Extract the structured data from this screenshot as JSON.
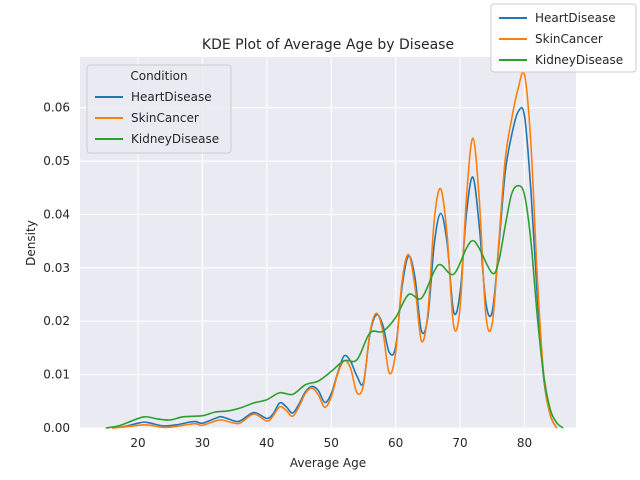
{
  "chart_data": {
    "type": "line",
    "title": "KDE Plot of Average Age by Disease",
    "xlabel": "Average Age",
    "ylabel": "Density",
    "xlim": [
      11,
      88
    ],
    "ylim": [
      0,
      0.0695
    ],
    "xticks": [
      20,
      30,
      40,
      50,
      60,
      70,
      80
    ],
    "yticks": [
      0.0,
      0.01,
      0.02,
      0.03,
      0.04,
      0.05,
      0.06
    ],
    "ytick_labels": [
      "0.00",
      "0.01",
      "0.02",
      "0.03",
      "0.04",
      "0.05",
      "0.06"
    ],
    "grid": true,
    "background": "#eaeaf2",
    "legend_inner": {
      "title": "Condition",
      "placement": "upper-left",
      "entries": [
        "HeartDisease",
        "SkinCancer",
        "KidneyDisease"
      ]
    },
    "legend_outer": {
      "placement": "top-right",
      "entries": [
        "HeartDisease",
        "SkinCancer",
        "KidneyDisease"
      ]
    },
    "series": [
      {
        "name": "HeartDisease",
        "color": "#1f77b4",
        "points": [
          [
            16,
            0
          ],
          [
            18,
            0.0003
          ],
          [
            20,
            0.0009
          ],
          [
            21,
            0.0011
          ],
          [
            22,
            0.0009
          ],
          [
            24,
            0.0004
          ],
          [
            26,
            0.0006
          ],
          [
            28,
            0.0011
          ],
          [
            29,
            0.0012
          ],
          [
            30,
            0.0009
          ],
          [
            32,
            0.0018
          ],
          [
            33,
            0.0021
          ],
          [
            35,
            0.0013
          ],
          [
            36,
            0.0014
          ],
          [
            38,
            0.0029
          ],
          [
            40,
            0.0018
          ],
          [
            41,
            0.0027
          ],
          [
            42,
            0.0047
          ],
          [
            43,
            0.004
          ],
          [
            44,
            0.0028
          ],
          [
            45,
            0.0045
          ],
          [
            46,
            0.0068
          ],
          [
            47,
            0.0078
          ],
          [
            48,
            0.007
          ],
          [
            49,
            0.0048
          ],
          [
            50,
            0.0064
          ],
          [
            51,
            0.0103
          ],
          [
            52,
            0.0135
          ],
          [
            53,
            0.0125
          ],
          [
            54,
            0.0097
          ],
          [
            55,
            0.0085
          ],
          [
            56,
            0.0175
          ],
          [
            57,
            0.0212
          ],
          [
            58,
            0.0193
          ],
          [
            59,
            0.0142
          ],
          [
            60,
            0.0152
          ],
          [
            61,
            0.0265
          ],
          [
            62,
            0.0322
          ],
          [
            63,
            0.0282
          ],
          [
            64,
            0.0182
          ],
          [
            65,
            0.0208
          ],
          [
            66,
            0.0345
          ],
          [
            67,
            0.0402
          ],
          [
            68,
            0.0346
          ],
          [
            69,
            0.0218
          ],
          [
            70,
            0.0253
          ],
          [
            71,
            0.0402
          ],
          [
            72,
            0.047
          ],
          [
            73,
            0.0376
          ],
          [
            74,
            0.0235
          ],
          [
            75,
            0.0218
          ],
          [
            76,
            0.0338
          ],
          [
            77,
            0.0478
          ],
          [
            78,
            0.0548
          ],
          [
            79,
            0.0592
          ],
          [
            80,
            0.0585
          ],
          [
            81,
            0.0445
          ],
          [
            82,
            0.0245
          ],
          [
            83,
            0.0092
          ],
          [
            84,
            0.0025
          ],
          [
            85,
            0
          ]
        ]
      },
      {
        "name": "SkinCancer",
        "color": "#ff7f0e",
        "points": [
          [
            16,
            0
          ],
          [
            18,
            0.0002
          ],
          [
            20,
            0.0005
          ],
          [
            21,
            0.0006
          ],
          [
            22,
            0.0005
          ],
          [
            24,
            0.0001
          ],
          [
            26,
            0.0003
          ],
          [
            28,
            0.0007
          ],
          [
            29,
            0.0008
          ],
          [
            30,
            0.0005
          ],
          [
            32,
            0.0013
          ],
          [
            33,
            0.0015
          ],
          [
            35,
            0.0009
          ],
          [
            36,
            0.001
          ],
          [
            38,
            0.0026
          ],
          [
            40,
            0.0013
          ],
          [
            41,
            0.0023
          ],
          [
            42,
            0.004
          ],
          [
            43,
            0.0033
          ],
          [
            44,
            0.0022
          ],
          [
            45,
            0.004
          ],
          [
            46,
            0.0065
          ],
          [
            47,
            0.0075
          ],
          [
            48,
            0.0062
          ],
          [
            49,
            0.0039
          ],
          [
            50,
            0.0058
          ],
          [
            51,
            0.0101
          ],
          [
            52,
            0.0126
          ],
          [
            53,
            0.0112
          ],
          [
            54,
            0.0066
          ],
          [
            55,
            0.008
          ],
          [
            56,
            0.0178
          ],
          [
            57,
            0.0215
          ],
          [
            58,
            0.0182
          ],
          [
            59,
            0.0103
          ],
          [
            60,
            0.0141
          ],
          [
            61,
            0.0275
          ],
          [
            62,
            0.0325
          ],
          [
            63,
            0.0265
          ],
          [
            64,
            0.0163
          ],
          [
            65,
            0.0215
          ],
          [
            66,
            0.039
          ],
          [
            67,
            0.0448
          ],
          [
            68,
            0.036
          ],
          [
            69,
            0.0192
          ],
          [
            70,
            0.0225
          ],
          [
            71,
            0.0432
          ],
          [
            72,
            0.0543
          ],
          [
            73,
            0.0425
          ],
          [
            74,
            0.0212
          ],
          [
            75,
            0.0196
          ],
          [
            76,
            0.0346
          ],
          [
            77,
            0.0502
          ],
          [
            78,
            0.0578
          ],
          [
            79,
            0.0635
          ],
          [
            80,
            0.0662
          ],
          [
            81,
            0.0532
          ],
          [
            82,
            0.0281
          ],
          [
            83,
            0.0098
          ],
          [
            84,
            0.0025
          ],
          [
            85,
            0
          ]
        ]
      },
      {
        "name": "KidneyDisease",
        "color": "#2ca02c",
        "points": [
          [
            15,
            0
          ],
          [
            17,
            0.0004
          ],
          [
            19,
            0.0013
          ],
          [
            21,
            0.0021
          ],
          [
            23,
            0.0017
          ],
          [
            25,
            0.0015
          ],
          [
            27,
            0.0021
          ],
          [
            30,
            0.0023
          ],
          [
            32,
            0.003
          ],
          [
            34,
            0.0032
          ],
          [
            36,
            0.0038
          ],
          [
            38,
            0.0047
          ],
          [
            40,
            0.0053
          ],
          [
            42,
            0.0066
          ],
          [
            44,
            0.0063
          ],
          [
            46,
            0.0081
          ],
          [
            48,
            0.0088
          ],
          [
            50,
            0.0106
          ],
          [
            52,
            0.0126
          ],
          [
            54,
            0.0128
          ],
          [
            56,
            0.0178
          ],
          [
            58,
            0.0181
          ],
          [
            60,
            0.0207
          ],
          [
            62,
            0.025
          ],
          [
            64,
            0.0243
          ],
          [
            66,
            0.0294
          ],
          [
            67,
            0.0306
          ],
          [
            69,
            0.0288
          ],
          [
            71,
            0.0337
          ],
          [
            72,
            0.0351
          ],
          [
            73,
            0.0336
          ],
          [
            75,
            0.029
          ],
          [
            76,
            0.0312
          ],
          [
            77,
            0.0378
          ],
          [
            78,
            0.0438
          ],
          [
            79,
            0.0454
          ],
          [
            80,
            0.0437
          ],
          [
            81,
            0.035
          ],
          [
            82,
            0.0208
          ],
          [
            83,
            0.0098
          ],
          [
            84,
            0.0035
          ],
          [
            85,
            0.001
          ],
          [
            86,
            0
          ]
        ]
      }
    ]
  }
}
